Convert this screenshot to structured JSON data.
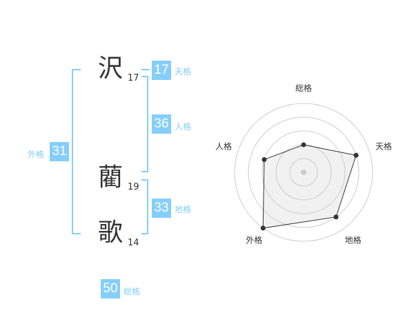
{
  "name": {
    "chars": [
      {
        "char": "沢",
        "strokes": "17"
      },
      {
        "char": "藺",
        "strokes": "19"
      },
      {
        "char": "歌",
        "strokes": "14"
      }
    ]
  },
  "kaku": {
    "tenkaku": {
      "label": "天格",
      "value": "17"
    },
    "jinkaku": {
      "label": "人格",
      "value": "36"
    },
    "chikaku": {
      "label": "地格",
      "value": "33"
    },
    "gaikaku": {
      "label": "外格",
      "value": "31"
    },
    "soukaku": {
      "label": "総格",
      "value": "50"
    }
  },
  "colors": {
    "accent": "#85cefa",
    "text": "#333333"
  },
  "chart_data": {
    "type": "radar",
    "axes": [
      "総格",
      "天格",
      "地格",
      "外格",
      "人格"
    ],
    "values": [
      2,
      4,
      4,
      5,
      3
    ],
    "range": [
      0,
      5
    ],
    "rings": 5
  }
}
